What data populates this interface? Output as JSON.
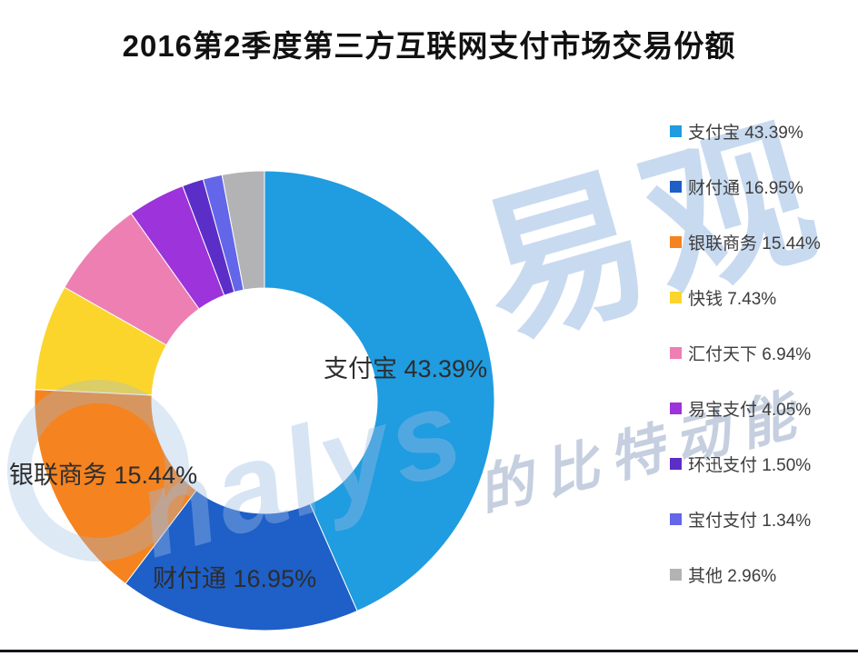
{
  "title": "2016第2季度第三方互联网支付市场交易份额",
  "chart_data": {
    "type": "pie",
    "subtype": "donut",
    "title": "2016第2季度第三方互联网支付市场交易份额",
    "start_angle_deg": 0,
    "direction": "clockwise",
    "inner_radius_ratio": 0.49,
    "legend_position": "right",
    "series": [
      {
        "label": "支付宝",
        "value": 43.39,
        "pct": "43.39%",
        "color": "#209CE0"
      },
      {
        "label": "财付通",
        "value": 16.95,
        "pct": "16.95%",
        "color": "#1E5FC8"
      },
      {
        "label": "银联商务",
        "value": 15.44,
        "pct": "15.44%",
        "color": "#F5831F"
      },
      {
        "label": "快钱",
        "value": 7.43,
        "pct": "7.43%",
        "color": "#FBD52C"
      },
      {
        "label": "汇付天下",
        "value": 6.94,
        "pct": "6.94%",
        "color": "#EE7FB2"
      },
      {
        "label": "易宝支付",
        "value": 4.05,
        "pct": "4.05%",
        "color": "#9C33DB"
      },
      {
        "label": "环迅支付",
        "value": 1.5,
        "pct": "1.50%",
        "color": "#5C2EC8"
      },
      {
        "label": "宝付支付",
        "value": 1.34,
        "pct": "1.34%",
        "color": "#6366E8"
      },
      {
        "label": "其他",
        "value": 2.96,
        "pct": "2.96%",
        "color": "#B3B3B6"
      }
    ],
    "callouts": [
      {
        "text": "支付宝 43.39%"
      },
      {
        "text": "银联商务 15.44%"
      },
      {
        "text": "财付通 16.95%"
      }
    ]
  },
  "watermark": {
    "logo_cn": "易观",
    "logo_en": "nalys",
    "slogan": "的比特动能"
  }
}
